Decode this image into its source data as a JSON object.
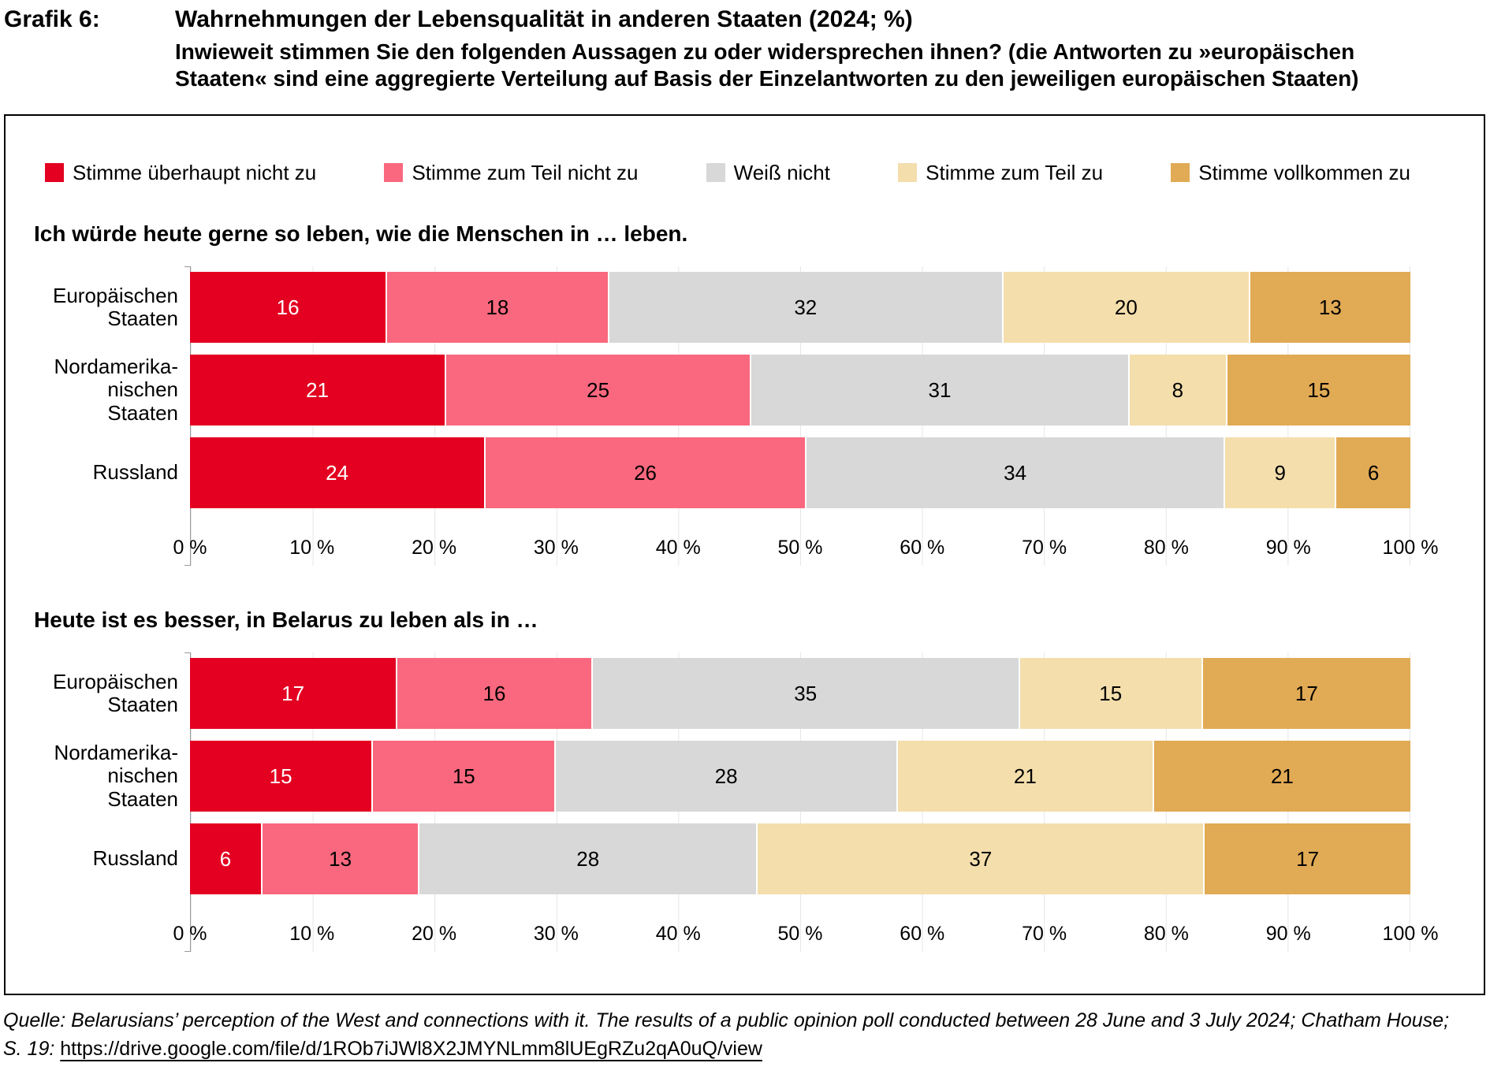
{
  "header": {
    "grafik_label": "Grafik 6:",
    "title": "Wahrnehmungen der Lebensqualität in anderen Staaten (2024; %)",
    "subtitle_line1": "Inwieweit stimmen Sie den folgenden Aussagen zu oder widersprechen ihnen? (die Antworten zu »europäischen",
    "subtitle_line2": "Staaten« sind eine aggregierte Verteilung auf Basis der Einzelantworten zu den jeweiligen europäischen Staaten)"
  },
  "legend": [
    {
      "label": "Stimme überhaupt nicht zu",
      "color": "#e30021",
      "text_color": "#ffffff"
    },
    {
      "label": "Stimme zum Teil nicht zu",
      "color": "#f9687e",
      "text_color": "#000000"
    },
    {
      "label": "Weiß nicht",
      "color": "#d8d8d8",
      "text_color": "#000000"
    },
    {
      "label": "Stimme zum Teil zu",
      "color": "#f3deac",
      "text_color": "#000000"
    },
    {
      "label": "Stimme vollkommen zu",
      "color": "#e1aa55",
      "text_color": "#000000"
    }
  ],
  "chart_data": [
    {
      "type": "bar",
      "stacked": true,
      "orientation": "horizontal",
      "title": "Ich würde heute gerne so leben, wie die Menschen in … leben.",
      "categories": [
        "Europäischen Staaten",
        "Nordamerikanischen Staaten",
        "Russland"
      ],
      "categories_display": [
        "Europäischen\nStaaten",
        "Nordamerika-\nnischen\nStaaten",
        "Russland"
      ],
      "series": [
        {
          "name": "Stimme überhaupt nicht zu",
          "values": [
            16,
            21,
            24
          ]
        },
        {
          "name": "Stimme zum Teil nicht zu",
          "values": [
            18,
            25,
            26
          ]
        },
        {
          "name": "Weiß nicht",
          "values": [
            32,
            31,
            34
          ]
        },
        {
          "name": "Stimme zum Teil zu",
          "values": [
            20,
            8,
            9
          ]
        },
        {
          "name": "Stimme vollkommen zu",
          "values": [
            13,
            15,
            6
          ]
        }
      ],
      "xlim": [
        0,
        100
      ],
      "x_ticks": [
        "0 %",
        "10 %",
        "20 %",
        "30 %",
        "40 %",
        "50 %",
        "60 %",
        "70 %",
        "80 %",
        "90 %",
        "100 %"
      ],
      "grid": true,
      "legend_position": "top"
    },
    {
      "type": "bar",
      "stacked": true,
      "orientation": "horizontal",
      "title": "Heute ist es besser, in Belarus zu leben als in …",
      "categories": [
        "Europäischen Staaten",
        "Nordamerikanischen Staaten",
        "Russland"
      ],
      "categories_display": [
        "Europäischen\nStaaten",
        "Nordamerika-\nnischen\nStaaten",
        "Russland"
      ],
      "series": [
        {
          "name": "Stimme überhaupt nicht zu",
          "values": [
            17,
            15,
            6
          ]
        },
        {
          "name": "Stimme zum Teil nicht zu",
          "values": [
            16,
            15,
            13
          ]
        },
        {
          "name": "Weiß nicht",
          "values": [
            35,
            28,
            28
          ]
        },
        {
          "name": "Stimme zum Teil zu",
          "values": [
            15,
            21,
            37
          ]
        },
        {
          "name": "Stimme vollkommen zu",
          "values": [
            17,
            21,
            17
          ]
        }
      ],
      "xlim": [
        0,
        100
      ],
      "x_ticks": [
        "0 %",
        "10 %",
        "20 %",
        "30 %",
        "40 %",
        "50 %",
        "60 %",
        "70 %",
        "80 %",
        "90 %",
        "100 %"
      ],
      "grid": true,
      "legend_position": "top"
    }
  ],
  "source": {
    "line1": "Quelle: Belarusians’ perception of the West and connections with it. The results of a public opinion poll conducted between 28 June and 3 July 2024; Chatham House;",
    "line2_prefix": "S. 19: ",
    "link_text": "https://drive.google.com/file/d/1ROb7iJWl8X2JMYNLmm8lUEgRZu2qA0uQ/view"
  }
}
